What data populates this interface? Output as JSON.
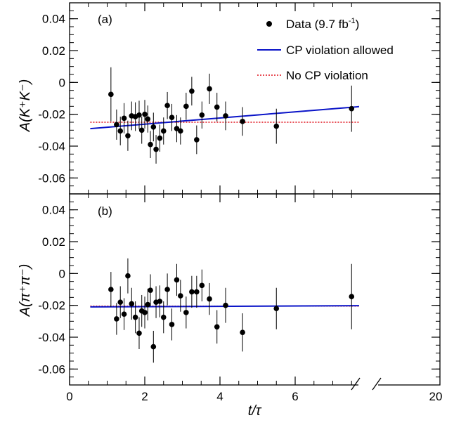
{
  "chart_data": {
    "type": "scatter",
    "x_label": "t/τ",
    "x_ticks": [
      "0",
      "2",
      "4",
      "6",
      "20"
    ],
    "x_axis_break": "7.7",
    "panels": [
      {
        "panel_label": "(a)",
        "ylabel": "A(K⁺K⁻)",
        "ylim": [
          -0.07,
          0.05
        ],
        "y_ticks": [
          "0.04",
          "0.02",
          "0",
          "-0.02",
          "-0.04",
          "-0.06"
        ],
        "y_tick_values": [
          0.04,
          0.02,
          0,
          -0.02,
          -0.04,
          -0.06
        ],
        "points": [
          {
            "x": 1.1,
            "y": -0.0075,
            "err": 0.017
          },
          {
            "x": 1.25,
            "y": -0.0265,
            "err": 0.0095
          },
          {
            "x": 1.35,
            "y": -0.0305,
            "err": 0.009
          },
          {
            "x": 1.45,
            "y": -0.0225,
            "err": 0.0095
          },
          {
            "x": 1.55,
            "y": -0.0335,
            "err": 0.0095
          },
          {
            "x": 1.65,
            "y": -0.021,
            "err": 0.009
          },
          {
            "x": 1.75,
            "y": -0.0215,
            "err": 0.009
          },
          {
            "x": 1.85,
            "y": -0.0205,
            "err": 0.009
          },
          {
            "x": 1.92,
            "y": -0.03,
            "err": 0.0085
          },
          {
            "x": 2.0,
            "y": -0.02,
            "err": 0.009
          },
          {
            "x": 2.08,
            "y": -0.023,
            "err": 0.0085
          },
          {
            "x": 2.15,
            "y": -0.039,
            "err": 0.0085
          },
          {
            "x": 2.23,
            "y": -0.028,
            "err": 0.009
          },
          {
            "x": 2.3,
            "y": -0.042,
            "err": 0.009
          },
          {
            "x": 2.4,
            "y": -0.035,
            "err": 0.0085
          },
          {
            "x": 2.5,
            "y": -0.0305,
            "err": 0.0085
          },
          {
            "x": 2.6,
            "y": -0.0145,
            "err": 0.0085
          },
          {
            "x": 2.72,
            "y": -0.022,
            "err": 0.0085
          },
          {
            "x": 2.85,
            "y": -0.029,
            "err": 0.0085
          },
          {
            "x": 2.95,
            "y": -0.0305,
            "err": 0.0085
          },
          {
            "x": 3.1,
            "y": -0.015,
            "err": 0.0085
          },
          {
            "x": 3.25,
            "y": -0.0055,
            "err": 0.009
          },
          {
            "x": 3.38,
            "y": -0.036,
            "err": 0.009
          },
          {
            "x": 3.52,
            "y": -0.0205,
            "err": 0.0085
          },
          {
            "x": 3.72,
            "y": -0.004,
            "err": 0.0095
          },
          {
            "x": 3.92,
            "y": -0.0155,
            "err": 0.009
          },
          {
            "x": 4.15,
            "y": -0.021,
            "err": 0.009
          },
          {
            "x": 4.6,
            "y": -0.0245,
            "err": 0.009
          },
          {
            "x": 5.5,
            "y": -0.0275,
            "err": 0.011
          },
          {
            "x": 7.5,
            "y": -0.0165,
            "err": 0.0145
          }
        ],
        "fit_cp_allowed": {
          "x": [
            0.55,
            7.7
          ],
          "y": [
            -0.029,
            -0.0152
          ]
        },
        "fit_no_cp": {
          "x": [
            0.55,
            7.7
          ],
          "y": [
            -0.025,
            -0.025
          ]
        }
      },
      {
        "panel_label": "(b)",
        "ylabel": "A(π⁺π⁻)",
        "ylim": [
          -0.07,
          0.05
        ],
        "y_ticks": [
          "0.04",
          "0.02",
          "0",
          "-0.02",
          "-0.04",
          "-0.06"
        ],
        "y_tick_values": [
          0.04,
          0.02,
          0,
          -0.02,
          -0.04,
          -0.06
        ],
        "points": [
          {
            "x": 1.1,
            "y": -0.01,
            "err": 0.011
          },
          {
            "x": 1.25,
            "y": -0.0285,
            "err": 0.01
          },
          {
            "x": 1.35,
            "y": -0.018,
            "err": 0.01
          },
          {
            "x": 1.45,
            "y": -0.0255,
            "err": 0.01
          },
          {
            "x": 1.55,
            "y": -0.0015,
            "err": 0.011
          },
          {
            "x": 1.65,
            "y": -0.019,
            "err": 0.01
          },
          {
            "x": 1.75,
            "y": -0.0275,
            "err": 0.01
          },
          {
            "x": 1.85,
            "y": -0.0375,
            "err": 0.01
          },
          {
            "x": 1.92,
            "y": -0.0235,
            "err": 0.01
          },
          {
            "x": 2.0,
            "y": -0.0245,
            "err": 0.01
          },
          {
            "x": 2.08,
            "y": -0.0195,
            "err": 0.01
          },
          {
            "x": 2.15,
            "y": -0.0105,
            "err": 0.01
          },
          {
            "x": 2.23,
            "y": -0.046,
            "err": 0.01
          },
          {
            "x": 2.3,
            "y": -0.018,
            "err": 0.01
          },
          {
            "x": 2.4,
            "y": -0.0175,
            "err": 0.01
          },
          {
            "x": 2.5,
            "y": -0.0275,
            "err": 0.01
          },
          {
            "x": 2.6,
            "y": -0.01,
            "err": 0.01
          },
          {
            "x": 2.72,
            "y": -0.032,
            "err": 0.01
          },
          {
            "x": 2.85,
            "y": -0.004,
            "err": 0.01
          },
          {
            "x": 2.95,
            "y": -0.014,
            "err": 0.01
          },
          {
            "x": 3.1,
            "y": -0.0245,
            "err": 0.01
          },
          {
            "x": 3.25,
            "y": -0.0115,
            "err": 0.01
          },
          {
            "x": 3.38,
            "y": -0.0115,
            "err": 0.01
          },
          {
            "x": 3.52,
            "y": -0.0075,
            "err": 0.01
          },
          {
            "x": 3.72,
            "y": -0.016,
            "err": 0.01
          },
          {
            "x": 3.92,
            "y": -0.0335,
            "err": 0.0105
          },
          {
            "x": 4.15,
            "y": -0.02,
            "err": 0.011
          },
          {
            "x": 4.6,
            "y": -0.037,
            "err": 0.012
          },
          {
            "x": 5.5,
            "y": -0.022,
            "err": 0.013
          },
          {
            "x": 7.5,
            "y": -0.0145,
            "err": 0.0205
          }
        ],
        "fit_cp_allowed": {
          "x": [
            0.55,
            7.7
          ],
          "y": [
            -0.021,
            -0.0202
          ]
        },
        "fit_no_cp": {
          "x": [
            0.55,
            7.7
          ],
          "y": [
            -0.0205,
            -0.0205
          ]
        }
      }
    ],
    "legend": {
      "placement": "top-right of panel (a)",
      "data_prefix": "Data (9.7 fb",
      "data_sup": "-1",
      "data_suffix": ")",
      "cp_allowed": "CP violation allowed",
      "no_cp": "No CP violation"
    },
    "colors": {
      "data": "#000000",
      "cp_allowed": "#0a14c8",
      "no_cp": "#e0141e"
    }
  }
}
